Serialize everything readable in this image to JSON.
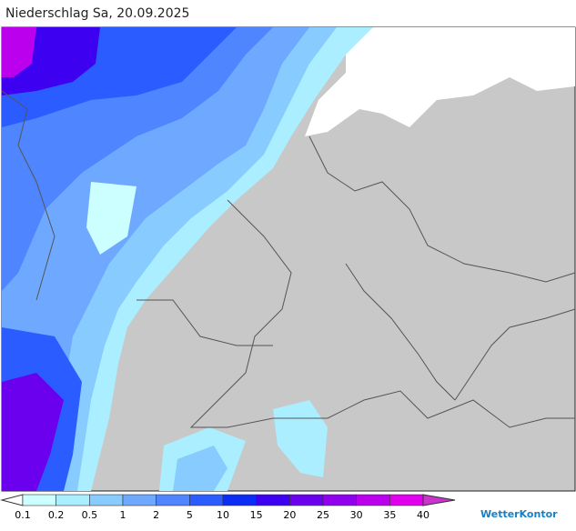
{
  "header": {
    "title": "Niederschlag Sa, 20.09.2025"
  },
  "legend": {
    "levels": [
      0.1,
      0.2,
      0.5,
      1,
      2,
      5,
      10,
      15,
      20,
      25,
      30,
      35,
      40
    ],
    "colors": [
      "#ffffff",
      "#ccffff",
      "#aaeeff",
      "#88ccff",
      "#6fa8ff",
      "#4f86ff",
      "#2b5cff",
      "#0a2cf5",
      "#3d00f0",
      "#6a00ee",
      "#9000ee",
      "#bb00ee",
      "#e000ee",
      "#cc33cc"
    ]
  },
  "logo": {
    "text": "WetterKontor"
  }
}
